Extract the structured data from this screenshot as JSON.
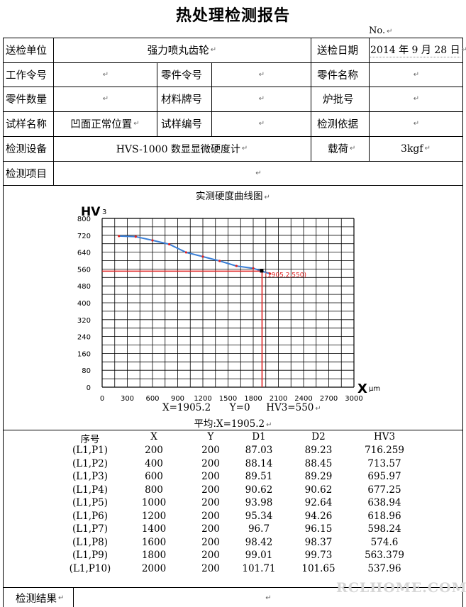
{
  "title": "热处理检测报告",
  "report_no_label": "No.",
  "header": {
    "row1": {
      "unit_label": "送检单位",
      "unit_value": "强力喷丸齿轮",
      "date_label": "送检日期",
      "date_value": "2014 年 9 月 28 日"
    },
    "row2": {
      "work_label": "工作令号",
      "work_value": "",
      "part_order_label": "零件令号",
      "part_order_value": "",
      "part_name_label": "零件名称",
      "part_name_value": ""
    },
    "row3": {
      "qty_label": "零件数量",
      "qty_value": "",
      "material_label": "材料牌号",
      "material_value": "",
      "batch_label": "炉批号",
      "batch_value": ""
    },
    "row4": {
      "sample_label": "试样名称",
      "sample_value": "凹面正常位置",
      "sample_no_label": "试样编号",
      "sample_no_value": "",
      "basis_label": "检测依据",
      "basis_value": ""
    },
    "row5": {
      "equip_label": "检测设备",
      "equip_value": "HVS-1000 数显显微硬度计",
      "load_label": "载荷",
      "load_value": "3kgf"
    },
    "row6": {
      "item_label": "检测项目",
      "item_value": ""
    }
  },
  "chart_title": "实测硬度曲线图",
  "chart_data": {
    "type": "line",
    "ylabel": "HV3",
    "xlabel": "μm",
    "x": [
      200,
      400,
      600,
      800,
      1000,
      1200,
      1400,
      1600,
      1800,
      2000
    ],
    "y": [
      716.259,
      713.57,
      695.97,
      677.25,
      638.94,
      618.96,
      598.24,
      574.6,
      563.379,
      537.96
    ],
    "xlim": [
      0,
      3000
    ],
    "ylim": [
      0,
      800
    ],
    "xticks": [
      0,
      300,
      600,
      900,
      1200,
      1500,
      1800,
      2100,
      2400,
      2700,
      3000
    ],
    "yticks": [
      0,
      80,
      160,
      240,
      320,
      400,
      480,
      560,
      640,
      720,
      800
    ],
    "grid": true,
    "marker": {
      "x": 1905.2,
      "y": 550,
      "label": "(1905.2,550)"
    },
    "line_color": "#3b7fd6",
    "marker_color": "#e02020"
  },
  "readout": {
    "x": "X=1905.2",
    "y": "Y=0",
    "hv": "HV3=550"
  },
  "average": "平均:X=1905.2",
  "table": {
    "headers": [
      "序号",
      "X",
      "Y",
      "D1",
      "D2",
      "HV3"
    ],
    "rows": [
      [
        "(L1,P1)",
        "200",
        "200",
        "87.03",
        "89.23",
        "716.259"
      ],
      [
        "(L1,P2)",
        "400",
        "200",
        "88.14",
        "88.45",
        "713.57"
      ],
      [
        "(L1,P3)",
        "600",
        "200",
        "89.51",
        "89.29",
        "695.97"
      ],
      [
        "(L1,P4)",
        "800",
        "200",
        "90.62",
        "90.62",
        "677.25"
      ],
      [
        "(L1,P5)",
        "1000",
        "200",
        "93.98",
        "92.64",
        "638.94"
      ],
      [
        "(L1,P6)",
        "1200",
        "200",
        "95.34",
        "94.26",
        "618.96"
      ],
      [
        "(L1,P7)",
        "1400",
        "200",
        "96.7",
        "96.15",
        "598.24"
      ],
      [
        "(L1,P8)",
        "1600",
        "200",
        "98.42",
        "98.37",
        "574.6"
      ],
      [
        "(L1,P9)",
        "1800",
        "200",
        "99.01",
        "99.73",
        "563.379"
      ],
      [
        "(L1,P10)",
        "2000",
        "200",
        "101.71",
        "101.65",
        "537.96"
      ]
    ]
  },
  "result_label": "检测结果",
  "watermark": "RCLHOME.COM"
}
